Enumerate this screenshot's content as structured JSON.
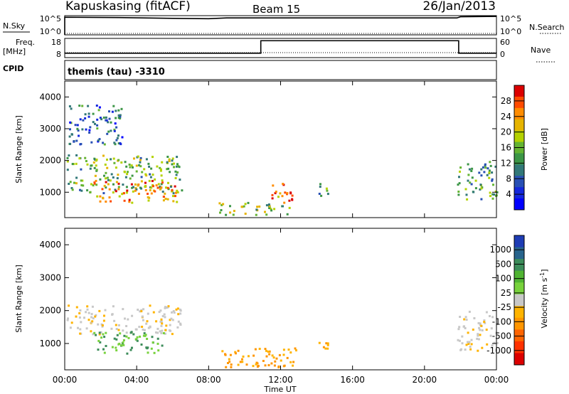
{
  "header": {
    "station": "Kapuskasing (fitACF)",
    "beam": "Beam 15",
    "date": "26/Jan/2013"
  },
  "strips": {
    "nsky_label": "N.Sky",
    "nsky_ticks": [
      "10^5",
      "10^0"
    ],
    "nsearch_label": "N.Search",
    "nsearch_ticks": [
      "10^5",
      "10^0"
    ],
    "freq_label_1": "Freq.",
    "freq_label_2": "[MHz]",
    "freq_ticks": [
      "18",
      "8"
    ],
    "nave_label": "Nave",
    "nave_ticks": [
      "60",
      "0"
    ],
    "cpid_label": "CPID",
    "cpid_value": "themis (tau) -3310"
  },
  "power_panel": {
    "ylabel": "Slant Range [km]",
    "cbar_label": "Power [dB]",
    "cbar_ticks": [
      "28",
      "24",
      "20",
      "16",
      "12",
      "8",
      "4"
    ],
    "cbar_colors": [
      "#dc0000",
      "#ff4b00",
      "#ff8c00",
      "#e6b400",
      "#b4d200",
      "#64b432",
      "#3c9646",
      "#327878",
      "#2850b4",
      "#1428dc",
      "#0000ff"
    ]
  },
  "velocity_panel": {
    "ylabel": "Slant Range [km]",
    "cbar_label": "Velocity [m s",
    "cbar_label_sup": "-1",
    "cbar_label_end": "]",
    "cbar_ticks": [
      "1000",
      "500",
      "100",
      "25",
      "-25",
      "-100",
      "-500",
      "-1000"
    ],
    "cbar_colors": [
      "#1e3cb4",
      "#28648c",
      "#3c8c5a",
      "#50b432",
      "#78d23c",
      "#c8c8c8",
      "#ffb400",
      "#ff9600",
      "#ff6400",
      "#ff3200",
      "#dc0000"
    ]
  },
  "xaxis": {
    "label": "Time UT",
    "ticks": [
      "00:00",
      "04:00",
      "08:00",
      "12:00",
      "16:00",
      "20:00",
      "00:00"
    ]
  },
  "chart_data": {
    "type": "heatmap",
    "x_range_hours": [
      0,
      24
    ],
    "y_range_km": [
      200,
      4500
    ],
    "y_ticks_km": [
      1000,
      2000,
      3000,
      4000
    ],
    "nsky_log_level": [
      [
        0,
        4.6
      ],
      [
        3,
        4.5
      ],
      [
        6,
        4.3
      ],
      [
        8,
        4.2
      ],
      [
        9,
        4.4
      ],
      [
        12,
        4.4
      ],
      [
        16,
        4.4
      ],
      [
        20,
        4.4
      ],
      [
        21.8,
        4.4
      ],
      [
        22,
        4.7
      ],
      [
        24,
        4.8
      ]
    ],
    "frequency_mhz_segments": [
      {
        "start": 0,
        "end": 10.9,
        "value": 10.3
      },
      {
        "start": 10.9,
        "end": 21.9,
        "value": 16.8
      },
      {
        "start": 21.9,
        "end": 24,
        "value": 10.3
      }
    ],
    "power_echo_regions": [
      {
        "t_start": 0.1,
        "t_end": 6.5,
        "r_min": 1000,
        "r_max": 2200,
        "dominant_db": 14
      },
      {
        "t_start": 1.5,
        "t_end": 6.2,
        "r_min": 700,
        "r_max": 1400,
        "dominant_db": 24
      },
      {
        "t_start": 0.2,
        "t_end": 3.2,
        "r_min": 2500,
        "r_max": 3800,
        "dominant_db": 8
      },
      {
        "t_start": 8.5,
        "t_end": 12.5,
        "r_min": 300,
        "r_max": 700,
        "dominant_db": 16
      },
      {
        "t_start": 11.3,
        "t_end": 12.8,
        "r_min": 700,
        "r_max": 1300,
        "dominant_db": 26
      },
      {
        "t_start": 13.8,
        "t_end": 14.6,
        "r_min": 900,
        "r_max": 1300,
        "dominant_db": 12
      },
      {
        "t_start": 21.8,
        "t_end": 24,
        "r_min": 800,
        "r_max": 2000,
        "dominant_db": 12
      }
    ],
    "velocity_echo_regions": [
      {
        "t_start": 0.1,
        "t_end": 6.5,
        "r_min": 1300,
        "r_max": 2200,
        "dominant_ms": 0
      },
      {
        "t_start": 1.5,
        "t_end": 5.5,
        "r_min": 700,
        "r_max": 1400,
        "dominant_ms": 80
      },
      {
        "t_start": 8.5,
        "t_end": 13.0,
        "r_min": 300,
        "r_max": 900,
        "dominant_ms": -100
      },
      {
        "t_start": 14.0,
        "t_end": 14.6,
        "r_min": 800,
        "r_max": 1300,
        "dominant_ms": -300
      },
      {
        "t_start": 21.8,
        "t_end": 24,
        "r_min": 800,
        "r_max": 2000,
        "dominant_ms": 0
      }
    ]
  }
}
